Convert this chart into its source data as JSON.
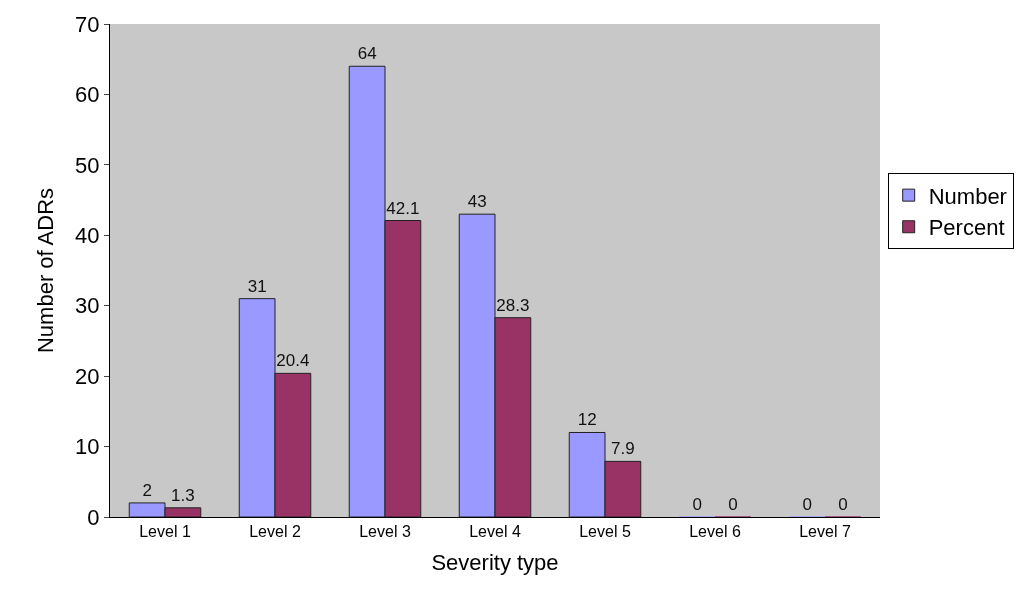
{
  "chart_data": {
    "type": "bar",
    "xlabel": "Severity type",
    "ylabel": "Number of ADRs",
    "categories": [
      "Level 1",
      "Level 2",
      "Level 3",
      "Level 4",
      "Level 5",
      "Level 6",
      "Level 7"
    ],
    "series": [
      {
        "name": "Number",
        "color": "#9999ff",
        "values": [
          2,
          31,
          64,
          43,
          12,
          0,
          0
        ]
      },
      {
        "name": "Percent",
        "color": "#993366",
        "values": [
          1.3,
          20.4,
          42.1,
          28.3,
          7.9,
          0,
          0
        ]
      }
    ],
    "ylim": [
      0,
      70
    ],
    "yticks": [
      0,
      10,
      20,
      30,
      40,
      50,
      60,
      70
    ],
    "data_labels": true,
    "grid": false,
    "legend": "right"
  }
}
